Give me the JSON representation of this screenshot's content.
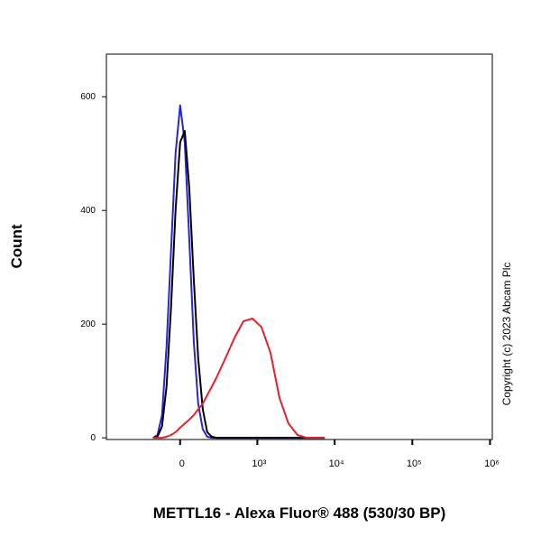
{
  "chart_data": {
    "type": "line",
    "y_label": "Count",
    "x_label": "METTL16 - Alexa Fluor® 488 (530/30 BP)",
    "annotation": "Copyright (c) 2023 Abcam Plc",
    "x_scale": "biexponential",
    "x": [
      -183,
      -148,
      -115,
      -85,
      -56,
      -28,
      0,
      28,
      56,
      85,
      115,
      148,
      183,
      222,
      264,
      366,
      489,
      652,
      861,
      1132,
      1484,
      1943,
      2544,
      3327,
      4354,
      5690,
      7440
    ],
    "series": [
      {
        "color": "#2626d4",
        "values": [
          0,
          5,
          40,
          160,
          330,
          500,
          585,
          520,
          350,
          170,
          60,
          15,
          2,
          0,
          0,
          0,
          0,
          0,
          0,
          0,
          0,
          0,
          0,
          0,
          0,
          0,
          0
        ]
      },
      {
        "color": "#000000",
        "values": [
          0,
          2,
          20,
          90,
          230,
          400,
          520,
          540,
          440,
          280,
          140,
          50,
          10,
          2,
          0,
          0,
          0,
          0,
          0,
          0,
          0,
          0,
          0,
          0,
          0,
          0,
          0
        ]
      },
      {
        "color": "#e8202a",
        "values": [
          0,
          0,
          0,
          2,
          5,
          10,
          18,
          25,
          32,
          40,
          50,
          60,
          75,
          90,
          105,
          140,
          175,
          205,
          210,
          195,
          150,
          70,
          25,
          5,
          0,
          0,
          0
        ]
      }
    ],
    "xlim": [
      -900,
      1070000
    ],
    "xticks": [
      0,
      {
        "value": 1000,
        "label": "10³"
      },
      {
        "value": 10000,
        "label": "10⁴"
      },
      {
        "value": 100000,
        "label": "10⁵"
      },
      {
        "value": 1000000,
        "label": "10⁶"
      }
    ],
    "ylim": [
      -3,
      675
    ],
    "yticks": [
      0,
      200,
      400,
      600
    ]
  }
}
